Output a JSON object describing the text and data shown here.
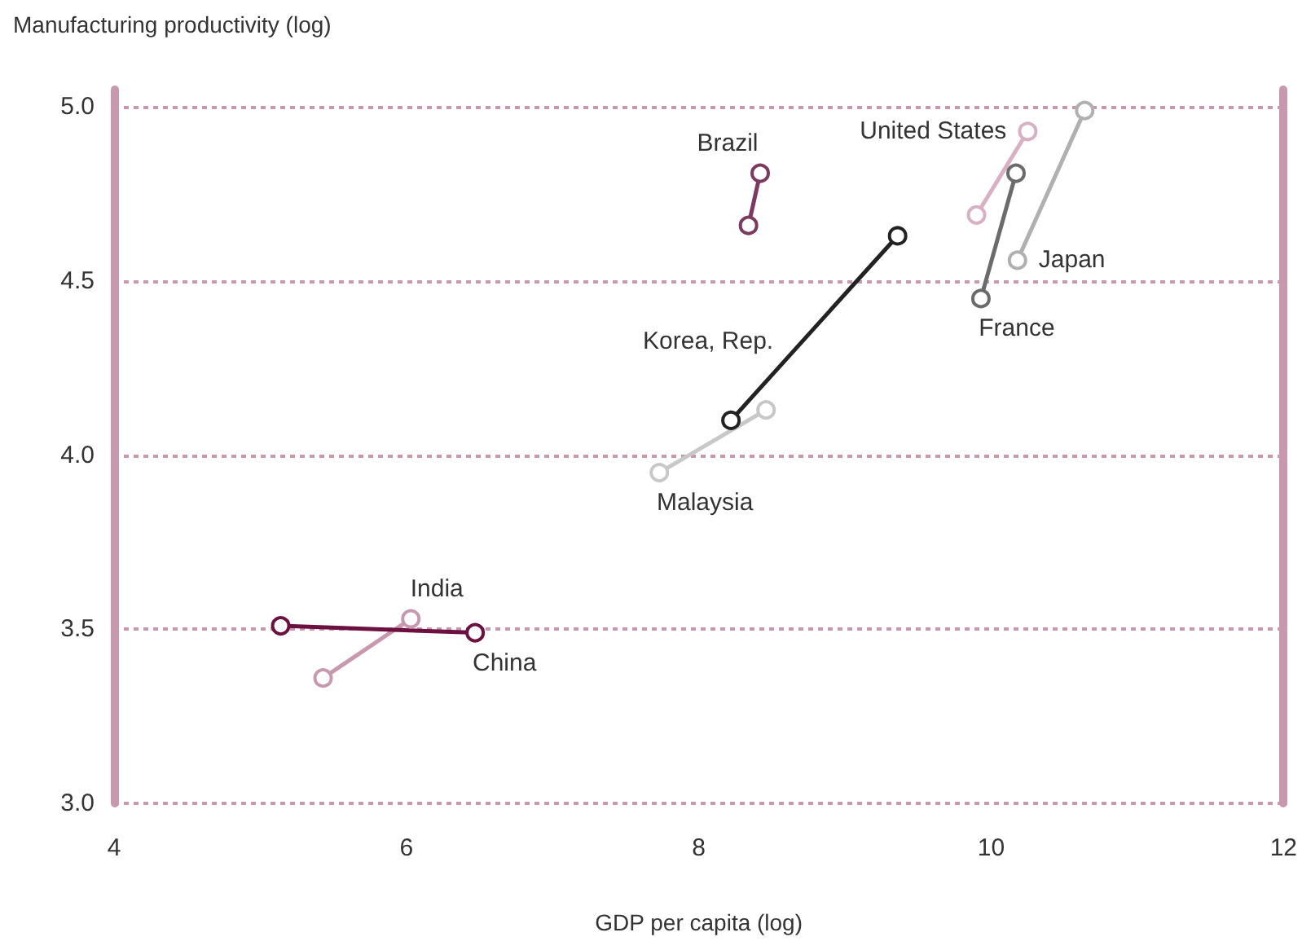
{
  "chart_data": {
    "type": "line",
    "xlabel": "GDP per capita (log)",
    "ylabel": "Manufacturing productivity (log)",
    "xlim": [
      4,
      12
    ],
    "xticks": [
      4,
      6,
      8,
      10,
      12
    ],
    "ylim": [
      3,
      5.05
    ],
    "yticks": [
      {
        "value": 3,
        "label": "3.0"
      },
      3.5,
      {
        "value": 4,
        "label": "4.0"
      },
      4.5,
      {
        "value": 5,
        "label": "5.0"
      }
    ],
    "grid": "y",
    "legend": false,
    "marker": "circle",
    "line_style": "solid",
    "series": [
      {
        "name": "Brazil",
        "color": "#7b3a5f",
        "x": [
          8.34,
          8.42
        ],
        "values": [
          4.66,
          4.81
        ]
      },
      {
        "name": "United States",
        "color": "#d8b0c4",
        "x": [
          9.9,
          10.25
        ],
        "values": [
          4.69,
          4.93
        ]
      },
      {
        "name": "France",
        "color": "#6b6b6b",
        "x": [
          9.93,
          10.17
        ],
        "values": [
          4.45,
          4.81
        ]
      },
      {
        "name": "Japan",
        "color": "#b0b0b0",
        "x": [
          10.18,
          10.64
        ],
        "values": [
          4.56,
          4.99
        ]
      },
      {
        "name": "Korea, Rep.",
        "color": "#222222",
        "x": [
          8.22,
          9.36
        ],
        "values": [
          4.1,
          4.63
        ]
      },
      {
        "name": "Malaysia",
        "color": "#c8c8c8",
        "x": [
          7.73,
          8.46
        ],
        "values": [
          3.95,
          4.13
        ]
      },
      {
        "name": "India",
        "color": "#c899ae",
        "x": [
          5.43,
          6.03
        ],
        "values": [
          3.36,
          3.53
        ]
      },
      {
        "name": "China",
        "color": "#6b1040",
        "x": [
          5.14,
          6.47
        ],
        "values": [
          3.51,
          3.49
        ]
      }
    ]
  }
}
